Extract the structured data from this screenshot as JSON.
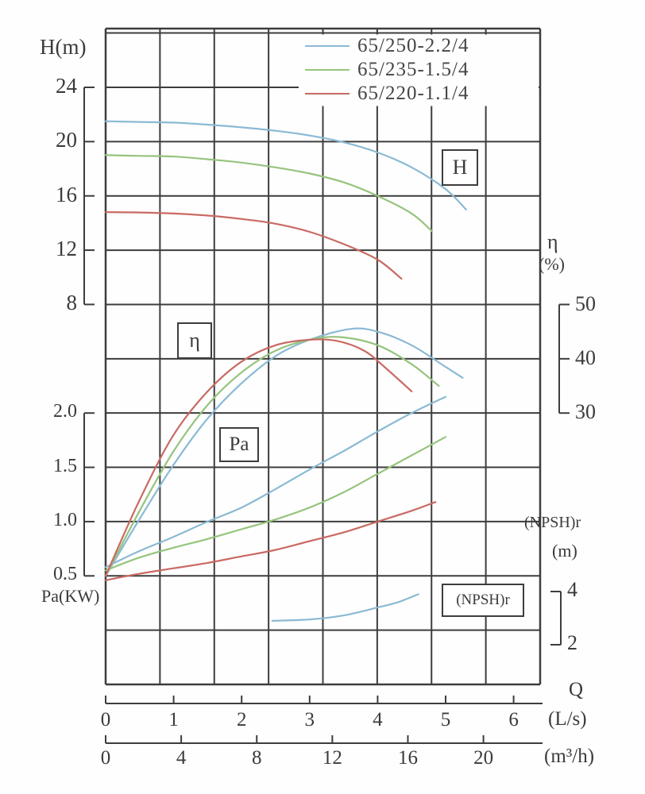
{
  "chart_data": {
    "type": "line",
    "title": "",
    "grid": "on",
    "legend_position": "top-right",
    "axes": {
      "head": {
        "label": "H(m)",
        "ticks": [
          "24",
          "20",
          "16",
          "12",
          "8"
        ],
        "range": [
          8,
          24
        ],
        "unit": "m"
      },
      "power": {
        "label": "Pa(KW)",
        "ticks": [
          "2.0",
          "1.5",
          "1.0",
          "0.5"
        ],
        "range": [
          0.5,
          2.0
        ],
        "unit": "KW"
      },
      "efficiency": {
        "label": "η",
        "unit_label": "(%)",
        "ticks": [
          "50",
          "40",
          "30"
        ],
        "range": [
          30,
          50
        ]
      },
      "npsh": {
        "label": "(NPSH)r",
        "unit_label": "(m)",
        "ticks": [
          "4",
          "2"
        ],
        "range": [
          2,
          4
        ]
      },
      "flow_ls": {
        "label": "Q",
        "unit_label": "(L/s)",
        "ticks": [
          "0",
          "1",
          "2",
          "3",
          "4",
          "5",
          "6"
        ],
        "range": [
          0,
          6.4
        ]
      },
      "flow_m3h": {
        "unit_label": "(m³/h)",
        "ticks": [
          "0",
          "4",
          "8",
          "12",
          "16",
          "20"
        ],
        "range": [
          0,
          23
        ]
      }
    },
    "curve_labels": {
      "head": "H",
      "efficiency": "η",
      "power": "Pa",
      "npsh": "(NPSH)r"
    },
    "series": [
      {
        "name": "65/250-2.2/4",
        "color": "#8bbad4",
        "curves": {
          "head": [
            [
              0,
              21.5
            ],
            [
              0.5,
              21.45
            ],
            [
              1,
              21.4
            ],
            [
              1.5,
              21.25
            ],
            [
              2,
              21.05
            ],
            [
              2.5,
              20.8
            ],
            [
              3,
              20.45
            ],
            [
              3.5,
              19.95
            ],
            [
              4,
              19.2
            ],
            [
              4.5,
              18.1
            ],
            [
              5,
              16.5
            ],
            [
              5.3,
              15.0
            ]
          ],
          "efficiency": [
            [
              0,
              0
            ],
            [
              0.5,
              10.5
            ],
            [
              1,
              20.5
            ],
            [
              1.5,
              29
            ],
            [
              2,
              35.5
            ],
            [
              2.5,
              40.5
            ],
            [
              3,
              43.5
            ],
            [
              3.6,
              45.5
            ],
            [
              4,
              45
            ],
            [
              4.5,
              42.5
            ],
            [
              5,
              38.5
            ],
            [
              5.25,
              36.5
            ]
          ],
          "power": [
            [
              0,
              0.58
            ],
            [
              0.5,
              0.73
            ],
            [
              1,
              0.86
            ],
            [
              1.5,
              1.0
            ],
            [
              2,
              1.13
            ],
            [
              2.5,
              1.3
            ],
            [
              3,
              1.48
            ],
            [
              3.5,
              1.65
            ],
            [
              4,
              1.83
            ],
            [
              4.5,
              2.0
            ],
            [
              5,
              2.15
            ]
          ],
          "npsh": [
            [
              2.45,
              2.9
            ],
            [
              3,
              2.95
            ],
            [
              3.5,
              3.1
            ],
            [
              4,
              3.4
            ],
            [
              4.3,
              3.6
            ],
            [
              4.6,
              3.9
            ]
          ]
        }
      },
      {
        "name": "65/235-1.5/4",
        "color": "#96c47d",
        "curves": {
          "head": [
            [
              0,
              19.0
            ],
            [
              0.5,
              18.95
            ],
            [
              1,
              18.9
            ],
            [
              1.5,
              18.7
            ],
            [
              2,
              18.45
            ],
            [
              2.5,
              18.1
            ],
            [
              3,
              17.65
            ],
            [
              3.5,
              17.0
            ],
            [
              4,
              16.0
            ],
            [
              4.5,
              14.7
            ],
            [
              4.8,
              13.4
            ]
          ],
          "efficiency": [
            [
              0,
              0
            ],
            [
              0.5,
              12
            ],
            [
              1,
              23
            ],
            [
              1.5,
              31.5
            ],
            [
              2,
              37.5
            ],
            [
              2.5,
              41.5
            ],
            [
              3,
              43.5
            ],
            [
              3.45,
              44
            ],
            [
              4,
              42.5
            ],
            [
              4.5,
              39
            ],
            [
              4.9,
              35
            ]
          ],
          "power": [
            [
              0,
              0.55
            ],
            [
              0.5,
              0.67
            ],
            [
              1,
              0.76
            ],
            [
              1.5,
              0.84
            ],
            [
              2,
              0.93
            ],
            [
              2.5,
              1.02
            ],
            [
              3,
              1.13
            ],
            [
              3.5,
              1.27
            ],
            [
              4,
              1.44
            ],
            [
              4.5,
              1.61
            ],
            [
              5,
              1.78
            ]
          ]
        }
      },
      {
        "name": "65/220-1.1/4",
        "color": "#c96a64",
        "curves": {
          "head": [
            [
              0,
              14.8
            ],
            [
              0.5,
              14.78
            ],
            [
              1,
              14.7
            ],
            [
              1.5,
              14.55
            ],
            [
              2,
              14.3
            ],
            [
              2.5,
              13.95
            ],
            [
              3,
              13.35
            ],
            [
              3.5,
              12.45
            ],
            [
              4,
              11.3
            ],
            [
              4.35,
              9.9
            ]
          ],
          "efficiency": [
            [
              0,
              0
            ],
            [
              0.5,
              14
            ],
            [
              1,
              26
            ],
            [
              1.5,
              34
            ],
            [
              2,
              39.5
            ],
            [
              2.5,
              42.5
            ],
            [
              3,
              43.5
            ],
            [
              3.4,
              43.3
            ],
            [
              3.8,
              41.5
            ],
            [
              4.1,
              38.5
            ],
            [
              4.5,
              34
            ]
          ],
          "power": [
            [
              0,
              0.46
            ],
            [
              0.5,
              0.52
            ],
            [
              1,
              0.57
            ],
            [
              1.5,
              0.62
            ],
            [
              2,
              0.68
            ],
            [
              2.5,
              0.74
            ],
            [
              3,
              0.82
            ],
            [
              3.5,
              0.9
            ],
            [
              4,
              1.0
            ],
            [
              4.5,
              1.1
            ],
            [
              4.85,
              1.18
            ]
          ]
        }
      }
    ]
  }
}
